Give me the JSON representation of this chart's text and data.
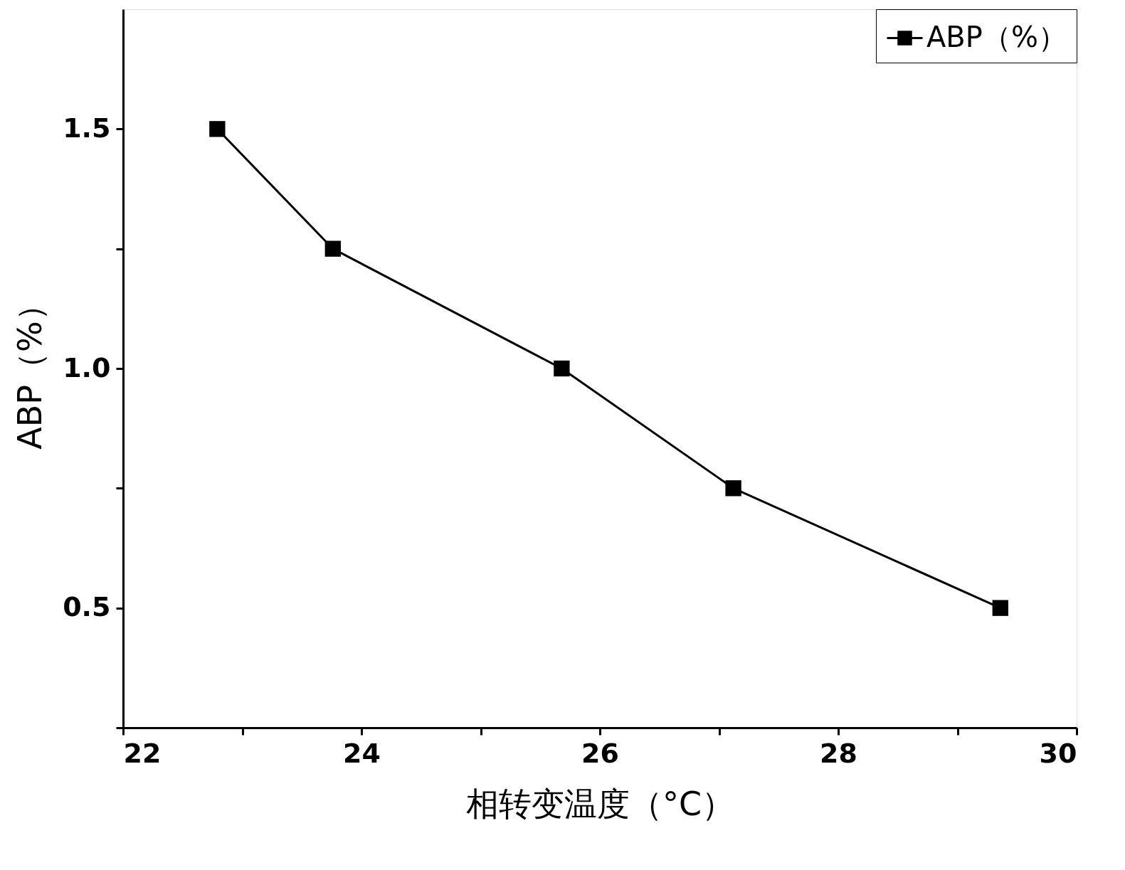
{
  "chart_data": {
    "type": "line",
    "xlabel": "相转变温度（°C）",
    "ylabel": "ABP（%）",
    "x": [
      22.79,
      23.76,
      25.68,
      27.12,
      29.36
    ],
    "series": [
      {
        "name": "ABP（%）",
        "color": "#000000",
        "values": [
          1.5,
          1.25,
          1.0,
          0.75,
          0.5
        ]
      }
    ],
    "xlim": [
      22,
      30
    ],
    "ylim": [
      0.25,
      1.75
    ],
    "xticks": [
      22,
      {
        "value": 23,
        "label": null
      },
      24,
      {
        "value": 25,
        "label": null
      },
      26,
      {
        "value": 27,
        "label": null
      },
      28,
      {
        "value": 29,
        "label": null
      },
      30
    ],
    "yticks": [
      {
        "value": 0.25,
        "label": null
      },
      0.5,
      {
        "value": 0.75,
        "label": null
      },
      {
        "value": 1.0,
        "label": "1.0"
      },
      {
        "value": 1.25,
        "label": null
      },
      1.5
    ],
    "marker": "square",
    "line_style": "solid",
    "legend": "top right",
    "grid": false
  }
}
